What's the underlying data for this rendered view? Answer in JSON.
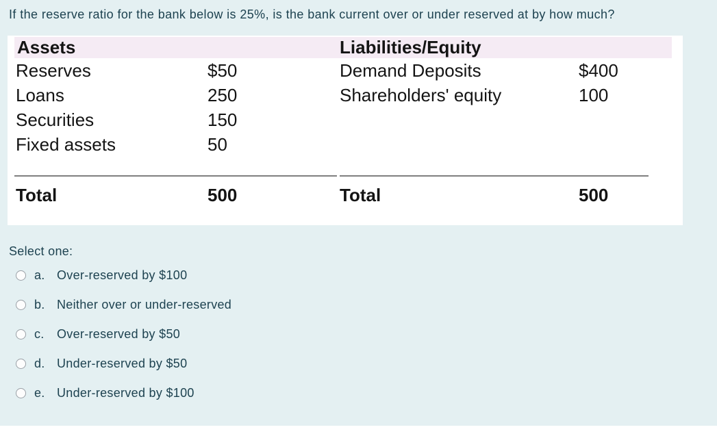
{
  "question": {
    "text": "If the reserve ratio for the bank below is 25%, is the bank current over or under reserved at by how much?"
  },
  "balance_sheet": {
    "assets": {
      "header": "Assets",
      "rows": [
        {
          "label": "Reserves",
          "value": "$50"
        },
        {
          "label": "Loans",
          "value": "250"
        },
        {
          "label": "Securities",
          "value": "150"
        },
        {
          "label": "Fixed assets",
          "value": "50"
        }
      ],
      "total_label": "Total",
      "total_value": "500"
    },
    "liabilities_equity": {
      "header": "Liabilities/Equity",
      "rows": [
        {
          "label": "Demand Deposits",
          "value": "$400"
        },
        {
          "label": "Shareholders' equity",
          "value": "100"
        }
      ],
      "total_label": "Total",
      "total_value": "500"
    }
  },
  "select_prompt": "Select one:",
  "options": [
    {
      "letter": "a.",
      "text": "Over-reserved by $100",
      "selected": false
    },
    {
      "letter": "b.",
      "text": "Neither over or under-reserved",
      "selected": false
    },
    {
      "letter": "c.",
      "text": "Over-reserved by $50",
      "selected": false
    },
    {
      "letter": "d.",
      "text": "Under-reserved by $50",
      "selected": false
    },
    {
      "letter": "e.",
      "text": "Under-reserved by $100",
      "selected": false
    }
  ],
  "colors": {
    "page_background": "#e4f0f2",
    "panel_background": "#ffffff",
    "table_header_background": "#f5ebf4",
    "table_text": "#141414",
    "question_text": "#1d4250",
    "divider_line": "#7f7f7f",
    "radio_border": "#9aa0a6"
  }
}
